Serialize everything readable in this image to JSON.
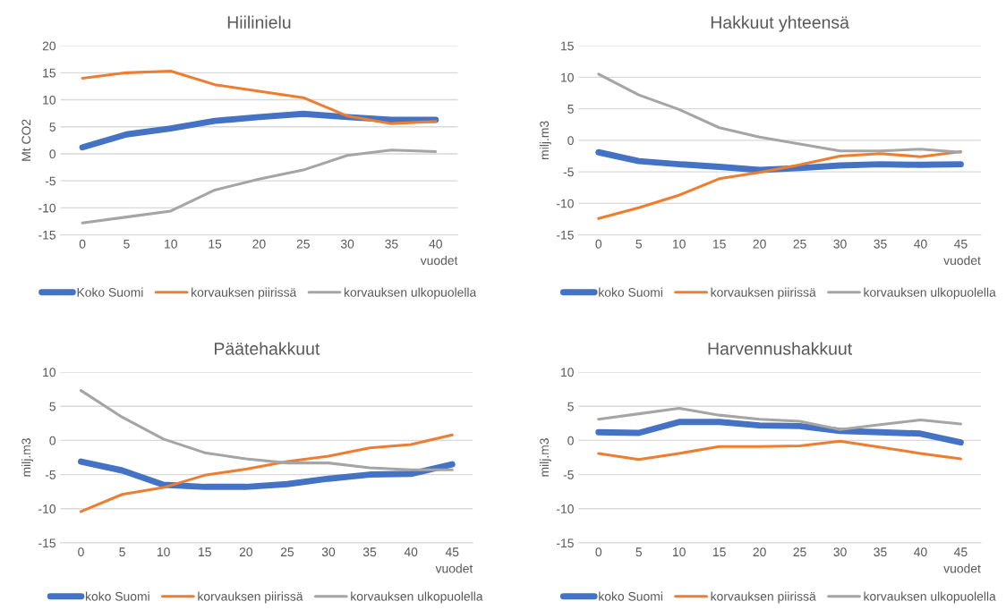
{
  "chart_data": [
    {
      "type": "line",
      "title": "Hiilinielu",
      "ylabel": "Mt CO2",
      "xlabel": "vuodet",
      "categories": [
        "0",
        "5",
        "10",
        "15",
        "20",
        "25",
        "30",
        "35",
        "40"
      ],
      "ylim": [
        -15,
        20
      ],
      "yticks": [
        -15,
        -10,
        -5,
        0,
        5,
        10,
        15,
        20
      ],
      "grid": "y",
      "legend": "bottom",
      "marker": "none",
      "series": [
        {
          "name": "Koko Suomi",
          "color": "#4472c4",
          "values": [
            1.2,
            3.6,
            4.7,
            6.1,
            6.8,
            7.4,
            6.8,
            6.3,
            6.3
          ]
        },
        {
          "name": "korvauksen piirissä",
          "color": "#ed7d31",
          "values": [
            14,
            15,
            15.3,
            12.8,
            11.6,
            10.4,
            7,
            5.6,
            6
          ]
        },
        {
          "name": "korvauksen ulkopuolella",
          "color": "#a5a5a5",
          "values": [
            -12.8,
            -11.7,
            -10.6,
            -6.7,
            -4.7,
            -3,
            -0.3,
            0.7,
            0.4
          ]
        }
      ]
    },
    {
      "type": "line",
      "title": "Hakkuut yhteensä",
      "ylabel": "milj.m3",
      "xlabel": "vuodet",
      "categories": [
        "0",
        "5",
        "10",
        "15",
        "20",
        "25",
        "30",
        "35",
        "40",
        "45"
      ],
      "ylim": [
        -15,
        15
      ],
      "yticks": [
        -15,
        -10,
        -5,
        0,
        5,
        10,
        15
      ],
      "grid": "y",
      "legend": "bottom",
      "marker": "none",
      "series": [
        {
          "name": "koko Suomi",
          "color": "#4472c4",
          "values": [
            -1.9,
            -3.3,
            -3.8,
            -4.2,
            -4.7,
            -4.4,
            -4,
            -3.8,
            -3.9,
            -3.8
          ]
        },
        {
          "name": "korvauksen piirissä",
          "color": "#ed7d31",
          "values": [
            -12.4,
            -10.7,
            -8.7,
            -6.1,
            -5.1,
            -3.9,
            -2.5,
            -2.1,
            -2.6,
            -1.8
          ]
        },
        {
          "name": "korvauksen ulkopuolella",
          "color": "#a5a5a5",
          "values": [
            10.5,
            7.2,
            4.9,
            2,
            0.5,
            -0.6,
            -1.7,
            -1.7,
            -1.4,
            -1.9
          ]
        }
      ]
    },
    {
      "type": "line",
      "title": "Päätehakkuut",
      "ylabel": "milj.m3",
      "xlabel": "vuodet",
      "categories": [
        "0",
        "5",
        "10",
        "15",
        "20",
        "25",
        "30",
        "35",
        "40",
        "45"
      ],
      "ylim": [
        -15,
        10
      ],
      "yticks": [
        -15,
        -10,
        -5,
        0,
        5,
        10
      ],
      "grid": "y",
      "legend": "bottom",
      "marker": "none",
      "series": [
        {
          "name": "koko Suomi",
          "color": "#4472c4",
          "values": [
            -3.1,
            -4.4,
            -6.5,
            -6.8,
            -6.8,
            -6.4,
            -5.6,
            -5,
            -4.9,
            -3.5
          ]
        },
        {
          "name": "korvauksen piirissä",
          "color": "#ed7d31",
          "values": [
            -10.4,
            -7.9,
            -6.9,
            -5.1,
            -4.2,
            -3.1,
            -2.3,
            -1.1,
            -0.6,
            0.8
          ]
        },
        {
          "name": "korvauksen ulkopuolella",
          "color": "#a5a5a5",
          "values": [
            7.3,
            3.4,
            0.2,
            -1.8,
            -2.7,
            -3.3,
            -3.3,
            -4,
            -4.3,
            -4.3
          ]
        }
      ]
    },
    {
      "type": "line",
      "title": "Harvennushakkuut",
      "ylabel": "milj.m3",
      "xlabel": "vuodet",
      "categories": [
        "0",
        "5",
        "10",
        "15",
        "20",
        "25",
        "30",
        "35",
        "40",
        "45"
      ],
      "ylim": [
        -15,
        10
      ],
      "yticks": [
        -15,
        -10,
        -5,
        0,
        5,
        10
      ],
      "grid": "y",
      "legend": "bottom",
      "marker": "none",
      "series": [
        {
          "name": "koko Suomi",
          "color": "#4472c4",
          "values": [
            1.2,
            1.1,
            2.7,
            2.7,
            2.2,
            2.1,
            1.4,
            1.2,
            1,
            -0.3
          ]
        },
        {
          "name": "korvauksen piirissä",
          "color": "#ed7d31",
          "values": [
            -1.9,
            -2.8,
            -1.9,
            -0.9,
            -0.9,
            -0.8,
            -0.1,
            -1,
            -1.9,
            -2.7
          ]
        },
        {
          "name": "korvauksen ulkopuolella",
          "color": "#a5a5a5",
          "values": [
            3.1,
            3.9,
            4.7,
            3.7,
            3.1,
            2.8,
            1.6,
            2.3,
            3,
            2.4
          ]
        }
      ]
    }
  ]
}
